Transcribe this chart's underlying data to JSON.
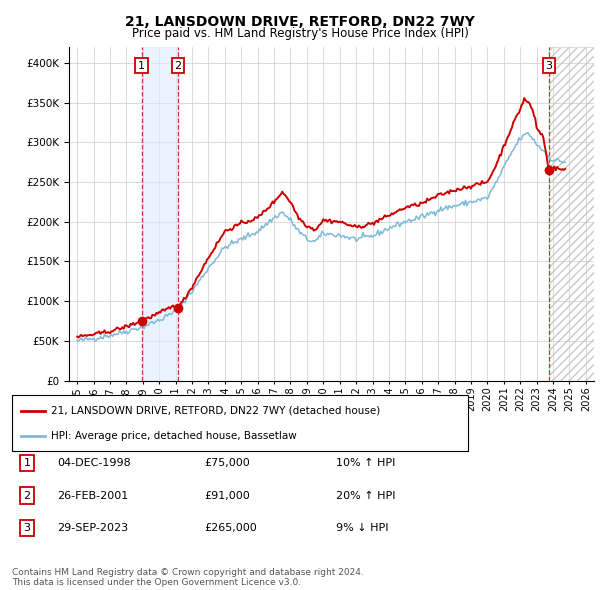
{
  "title": "21, LANSDOWN DRIVE, RETFORD, DN22 7WY",
  "subtitle": "Price paid vs. HM Land Registry's House Price Index (HPI)",
  "footer": "Contains HM Land Registry data © Crown copyright and database right 2024.\nThis data is licensed under the Open Government Licence v3.0.",
  "legend_house": "21, LANSDOWN DRIVE, RETFORD, DN22 7WY (detached house)",
  "legend_hpi": "HPI: Average price, detached house, Bassetlaw",
  "transactions": [
    {
      "num": 1,
      "date": "04-DEC-1998",
      "price": 75000,
      "pct": "10%",
      "dir": "↑"
    },
    {
      "num": 2,
      "date": "26-FEB-2001",
      "price": 91000,
      "pct": "20%",
      "dir": "↑"
    },
    {
      "num": 3,
      "date": "29-SEP-2023",
      "price": 265000,
      "pct": "9%",
      "dir": "↓"
    }
  ],
  "transaction_dates": [
    1998.92,
    2001.15,
    2023.75
  ],
  "transaction_prices": [
    75000,
    91000,
    265000
  ],
  "hpi_color": "#7eb9d8",
  "house_color": "#cc0000",
  "marker_color": "#cc0000",
  "annotation_box_color": "#cc0000",
  "ylim": [
    0,
    420000
  ],
  "yticks": [
    0,
    50000,
    100000,
    150000,
    200000,
    250000,
    300000,
    350000,
    400000
  ],
  "xlim": [
    1994.5,
    2026.5
  ],
  "xticks": [
    1995,
    1996,
    1997,
    1998,
    1999,
    2000,
    2001,
    2002,
    2003,
    2004,
    2005,
    2006,
    2007,
    2008,
    2009,
    2010,
    2011,
    2012,
    2013,
    2014,
    2015,
    2016,
    2017,
    2018,
    2019,
    2020,
    2021,
    2022,
    2023,
    2024,
    2025,
    2026
  ],
  "background_hatch_start": 2023.75,
  "background_hatch_end": 2026.5,
  "span_color": "#ddeeff"
}
